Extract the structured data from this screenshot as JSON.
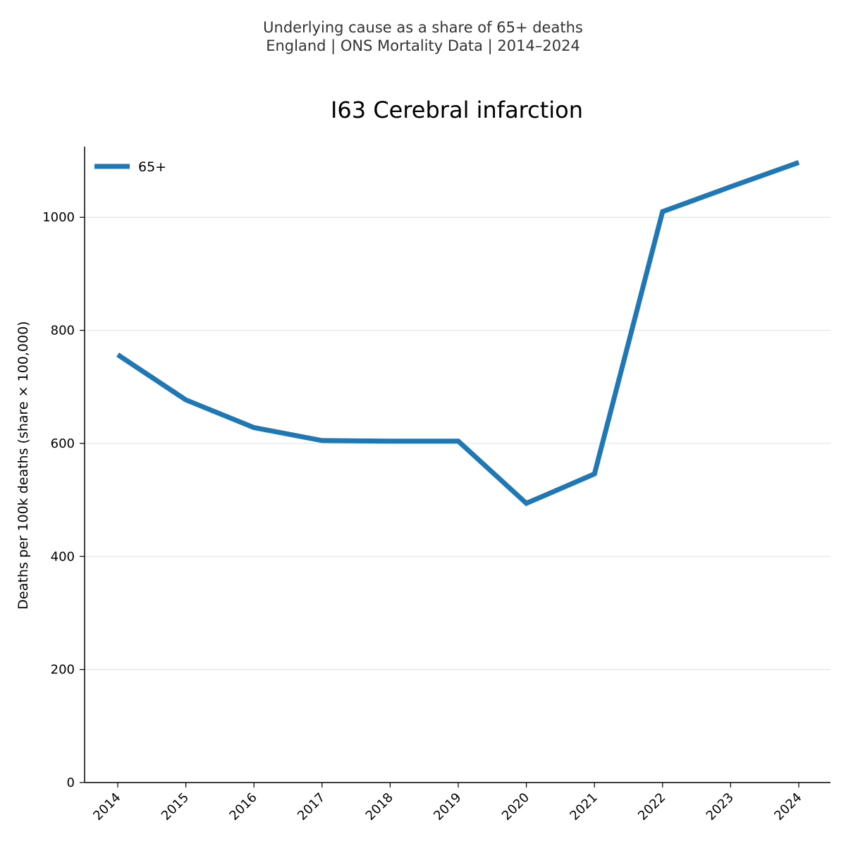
{
  "header": {
    "line1": "Underlying cause as a share of 65+ deaths",
    "line2": "England | ONS Mortality Data | 2014–2024"
  },
  "chart_data": {
    "type": "line",
    "title": "I63 Cerebral infarction",
    "xlabel": "",
    "ylabel": "Deaths per 100k deaths (share × 100,000)",
    "x": [
      "2014",
      "2015",
      "2016",
      "2017",
      "2018",
      "2019",
      "2020",
      "2021",
      "2022",
      "2023",
      "2024"
    ],
    "series": [
      {
        "name": "65+",
        "color": "#1f77b4",
        "values": [
          757,
          677,
          628,
          605,
          604,
          604,
          494,
          546,
          1010,
          1054,
          1097
        ]
      }
    ],
    "ylim": [
      0,
      1125
    ],
    "yticks": [
      0,
      200,
      400,
      600,
      800,
      1000
    ],
    "grid": "y",
    "legend": "upper-left"
  }
}
